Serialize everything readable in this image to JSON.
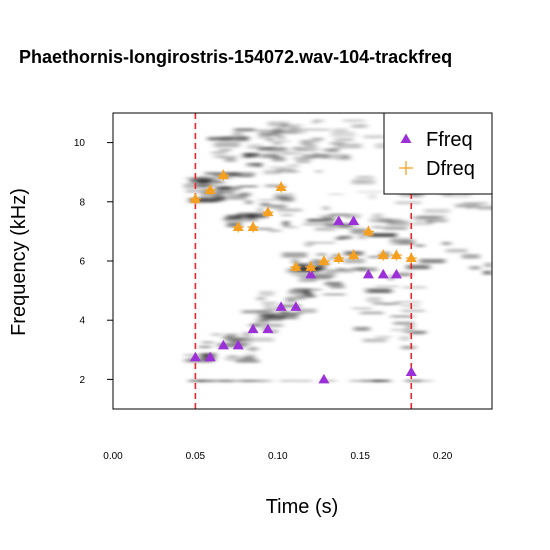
{
  "chart_data": {
    "type": "scatter",
    "title": "Phaethornis-longirostris-154072.wav-104-trackfreq",
    "xlabel": "Time (s)",
    "ylabel": "Frequency (kHz)",
    "xlim": [
      0.0,
      0.23
    ],
    "ylim": [
      1.0,
      11.0
    ],
    "x_ticks": [
      "0.00",
      "0.05",
      "0.10",
      "0.15",
      "0.20"
    ],
    "x_tick_values": [
      0.0,
      0.05,
      0.1,
      0.15,
      0.2
    ],
    "y_ticks": [
      "2",
      "4",
      "6",
      "8",
      "10"
    ],
    "y_tick_values": [
      2,
      4,
      6,
      8,
      10
    ],
    "background": "grayscale spectrogram",
    "legend_placement": "top-right",
    "vertical_lines": [
      {
        "x": 0.05,
        "color": "#e8262a",
        "style": "dashed"
      },
      {
        "x": 0.181,
        "color": "#e8262a",
        "style": "dashed"
      }
    ],
    "series": [
      {
        "name": "Ffreq",
        "marker": "triangle",
        "color": "#9b30d9",
        "x": [
          0.05,
          0.059,
          0.067,
          0.076,
          0.085,
          0.094,
          0.102,
          0.111,
          0.12,
          0.128,
          0.137,
          0.146,
          0.155,
          0.164,
          0.172,
          0.181
        ],
        "y": [
          2.75,
          2.75,
          3.15,
          3.15,
          3.7,
          3.7,
          4.45,
          4.45,
          5.55,
          2.0,
          7.35,
          7.35,
          5.55,
          5.55,
          5.55,
          2.25
        ]
      },
      {
        "name": "Dfreq",
        "marker": "plus",
        "color": "#f5a020",
        "x": [
          0.05,
          0.059,
          0.067,
          0.076,
          0.085,
          0.094,
          0.102,
          0.111,
          0.12,
          0.128,
          0.137,
          0.146,
          0.155,
          0.164,
          0.172,
          0.181
        ],
        "y": [
          8.1,
          8.4,
          8.9,
          7.15,
          7.15,
          7.65,
          8.5,
          5.8,
          5.8,
          6.0,
          6.1,
          6.2,
          7.0,
          6.2,
          6.2,
          6.1
        ]
      }
    ]
  }
}
